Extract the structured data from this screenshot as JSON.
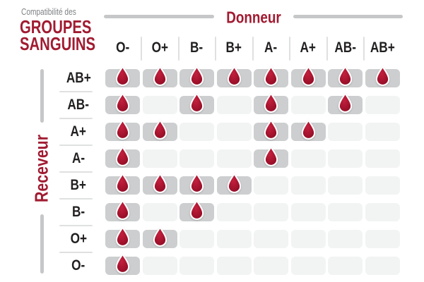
{
  "title": {
    "kicker": "Compatibilité des",
    "line1": "GROUPES",
    "line2": "SANGUINS"
  },
  "donor_axis": {
    "label": "Donneur"
  },
  "receiver_axis": {
    "label": "Receveur"
  },
  "legend": {
    "compatible_marker": "blood-drop-icon"
  },
  "colors": {
    "accent_red": "#A11B31",
    "kicker_gray": "#7E8083",
    "label_dark": "#221F1F",
    "cell_active": "#CCCECF",
    "cell_empty": "#F2F3F3",
    "separator": "#DFE0E0",
    "decor_line": "#C5C7C8",
    "drop_core": "#C2203E",
    "drop_mid": "#A8142F",
    "drop_edge": "#8C0B23",
    "drop_stroke": "#FFFFFF"
  },
  "chart_data": {
    "type": "heatmap",
    "title": "Compatibilité des groupes sanguins",
    "x_label": "Donneur",
    "y_label": "Receveur",
    "columns": [
      "O-",
      "O+",
      "B-",
      "B+",
      "A-",
      "A+",
      "AB-",
      "AB+"
    ],
    "rows": [
      "AB+",
      "AB-",
      "A+",
      "A-",
      "B+",
      "B-",
      "O+",
      "O-"
    ],
    "values": [
      [
        1,
        1,
        1,
        1,
        1,
        1,
        1,
        1
      ],
      [
        1,
        0,
        1,
        0,
        1,
        0,
        1,
        0
      ],
      [
        1,
        1,
        0,
        0,
        1,
        1,
        0,
        0
      ],
      [
        1,
        0,
        0,
        0,
        1,
        0,
        0,
        0
      ],
      [
        1,
        1,
        1,
        1,
        0,
        0,
        0,
        0
      ],
      [
        1,
        0,
        1,
        0,
        0,
        0,
        0,
        0
      ],
      [
        1,
        1,
        0,
        0,
        0,
        0,
        0,
        0
      ],
      [
        1,
        0,
        0,
        0,
        0,
        0,
        0,
        0
      ]
    ],
    "value_meaning": {
      "1": "compatible — blood drop shown on gray cell",
      "0": "not compatible — empty light cell"
    },
    "legend_position": "none",
    "grid": false
  }
}
